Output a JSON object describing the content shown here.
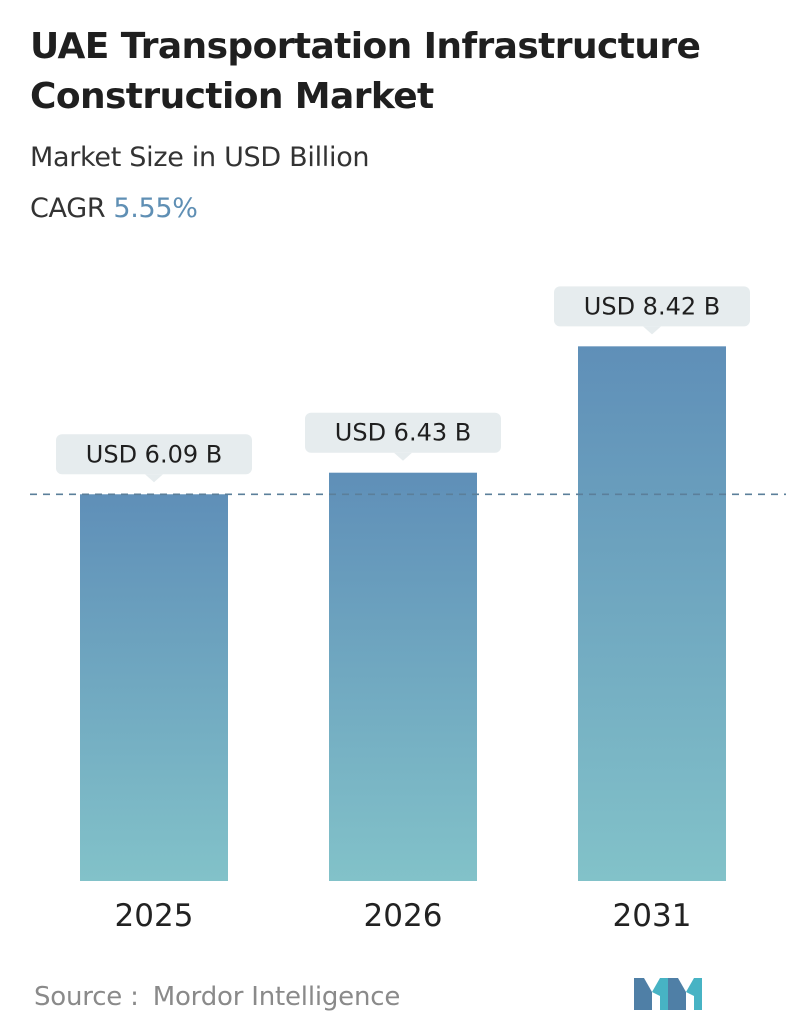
{
  "header": {
    "title": "UAE Transportation Infrastructure Construction Market",
    "subtitle": "Market Size in USD Billion",
    "cagr_label": "CAGR",
    "cagr_value": "5.55%"
  },
  "footer": {
    "source_label": "Source :",
    "source_value": "Mordor Intelligence"
  },
  "colors": {
    "bar_top": "#5f8fb8",
    "bar_bottom": "#82c2c9",
    "label_bg": "#e6ecee",
    "reference_line": "#5b7f9a",
    "cagr_accent": "#5f8fb4"
  },
  "chart_data": {
    "type": "bar",
    "categories": [
      "2025",
      "2026",
      "2031"
    ],
    "values": [
      6.09,
      6.43,
      8.42
    ],
    "data_labels": [
      "USD 6.09 B",
      "USD 6.43 B",
      "USD 8.42 B"
    ],
    "ylim": [
      0,
      9.5
    ],
    "reference_line_value": 6.09,
    "grid": false,
    "legend": "none"
  }
}
